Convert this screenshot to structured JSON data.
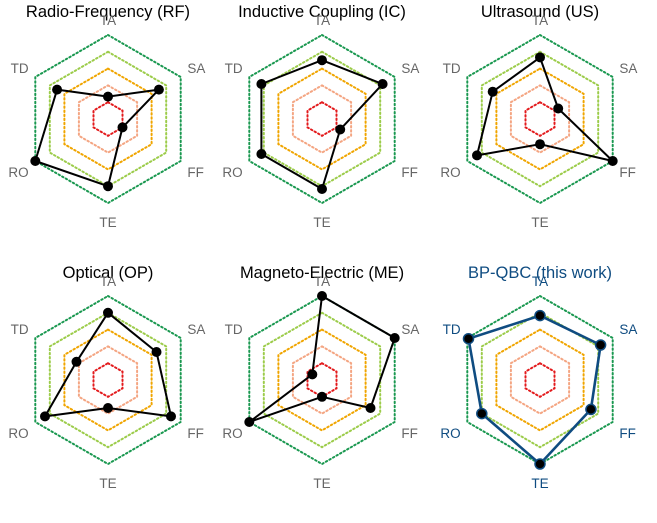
{
  "chart_data": [
    {
      "type": "radar",
      "title": "Radio-Frequency (RF)",
      "axes": [
        "TA",
        "SA",
        "FF",
        "TE",
        "RO",
        "TD"
      ],
      "levels": 5,
      "values": [
        1.6,
        4.2,
        1.2,
        4.8,
        6.0,
        4.2
      ],
      "rmax": 6,
      "grid": true
    },
    {
      "type": "radar",
      "title": "Inductive Coupling (IC)",
      "axes": [
        "TA",
        "SA",
        "FF",
        "TE",
        "RO",
        "TD"
      ],
      "levels": 5,
      "values": [
        4.2,
        5.0,
        1.5,
        5.0,
        5.0,
        5.0
      ],
      "rmax": 6,
      "grid": true
    },
    {
      "type": "radar",
      "title": "Ultrasound (US)",
      "axes": [
        "TA",
        "SA",
        "FF",
        "TE",
        "RO",
        "TD"
      ],
      "levels": 5,
      "values": [
        4.4,
        1.5,
        6.0,
        1.8,
        5.2,
        3.9
      ],
      "rmax": 6,
      "grid": true
    },
    {
      "type": "radar",
      "title": "Optical (OP)",
      "axes": [
        "TA",
        "SA",
        "FF",
        "TE",
        "RO",
        "TD"
      ],
      "levels": 5,
      "values": [
        4.8,
        4.0,
        5.2,
        2.0,
        5.2,
        2.6
      ],
      "rmax": 6,
      "grid": true
    },
    {
      "type": "radar",
      "title": "Magneto-Electric (ME)",
      "axes": [
        "TA",
        "SA",
        "FF",
        "TE",
        "RO",
        "TD"
      ],
      "levels": 5,
      "values": [
        6.0,
        6.0,
        4.0,
        1.2,
        6.0,
        0.8
      ],
      "rmax": 6,
      "grid": true
    },
    {
      "type": "radar",
      "title": "BP-QBC (this work)",
      "axes": [
        "TA",
        "SA",
        "FF",
        "TE",
        "RO",
        "TD"
      ],
      "levels": 5,
      "values": [
        4.6,
        5.0,
        4.2,
        6.0,
        4.8,
        5.9
      ],
      "rmax": 6,
      "grid": true,
      "highlight": true
    }
  ],
  "colors": {
    "grid_levels": [
      "#e31a1c",
      "#f4a582",
      "#f0a500",
      "#9ccc4a",
      "#1a9850"
    ],
    "series_default": "#000000",
    "series_highlight": "#0f4c81",
    "axis_label_default": "#666666",
    "title_default": "#000000"
  }
}
